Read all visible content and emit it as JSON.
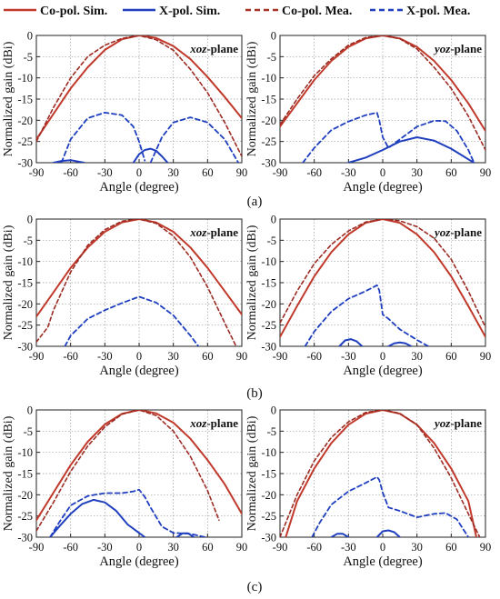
{
  "legend": [
    {
      "label": "Co-pol. Sim.",
      "color": "#c0392b",
      "style": "solid"
    },
    {
      "label": "X-pol. Sim.",
      "color": "#1f3fbf",
      "style": "solid"
    },
    {
      "label": "Co-pol. Mea.",
      "color": "#a93226",
      "style": "dashed"
    },
    {
      "label": "X-pol. Mea.",
      "color": "#1f3fbf",
      "style": "dashed"
    }
  ],
  "row_labels": [
    "(a)",
    "(b)",
    "(c)"
  ],
  "chart_data": [
    {
      "type": "line",
      "row": 0,
      "col": 0,
      "plane_italic": "xoz",
      "plane_suffix": "-plane",
      "xlabel": "Angle (degree)",
      "ylabel": "Normalized gain (dBi)",
      "xlim": [
        -90,
        90
      ],
      "ylim": [
        -30,
        0
      ],
      "xticks": [
        -90,
        -60,
        -30,
        0,
        30,
        60,
        90
      ],
      "yticks": [
        0,
        -5,
        -10,
        -15,
        -20,
        -25,
        -30
      ],
      "grid": true,
      "series": [
        {
          "name": "Co-pol. Sim.",
          "x": [
            -90,
            -75,
            -60,
            -45,
            -30,
            -15,
            0,
            15,
            30,
            45,
            60,
            75,
            90
          ],
          "y": [
            -24.5,
            -18.5,
            -12.5,
            -7.5,
            -3.4,
            -0.9,
            0,
            -0.6,
            -2.5,
            -5.6,
            -9.8,
            -14.5,
            -19.5
          ]
        },
        {
          "name": "X-pol. Sim.",
          "x": [
            -75,
            -68,
            -60,
            -54,
            -48
          ],
          "y": [
            -30,
            -29.6,
            -29.4,
            -29.7,
            -30
          ]
        },
        {
          "name": "X-pol. Sim.",
          "x": [
            -5,
            0,
            5,
            10,
            15,
            20,
            25
          ],
          "y": [
            -30,
            -28,
            -27,
            -26.7,
            -27.2,
            -28.5,
            -30
          ]
        },
        {
          "name": "Co-pol. Mea.",
          "x": [
            -90,
            -75,
            -60,
            -45,
            -30,
            -15,
            0,
            15,
            30,
            45,
            60,
            75,
            90
          ],
          "y": [
            -25,
            -17,
            -10,
            -5,
            -2.3,
            -0.7,
            0,
            -1,
            -3.5,
            -8,
            -13.5,
            -20.5,
            -28.5
          ]
        },
        {
          "name": "X-pol. Mea.",
          "x": [
            -68,
            -60,
            -45,
            -30,
            -15,
            -5,
            0,
            5
          ],
          "y": [
            -30,
            -24.5,
            -19.5,
            -18.2,
            -18.8,
            -21.5,
            -25,
            -29.5
          ]
        },
        {
          "name": "X-pol. Mea.",
          "x": [
            10,
            20,
            30,
            45,
            60,
            75,
            87
          ],
          "y": [
            -30,
            -24,
            -20.5,
            -19.3,
            -20.5,
            -24.5,
            -30
          ]
        }
      ]
    },
    {
      "type": "line",
      "row": 0,
      "col": 1,
      "plane_italic": "yoz",
      "plane_suffix": "-plane",
      "xlabel": "Angle (degree)",
      "ylabel": "Normalized gain (dBi)",
      "xlim": [
        -90,
        90
      ],
      "ylim": [
        -30,
        0
      ],
      "xticks": [
        -90,
        -60,
        -30,
        0,
        30,
        60,
        90
      ],
      "yticks": [
        0,
        -5,
        -10,
        -15,
        -20,
        -25,
        -30
      ],
      "grid": true,
      "series": [
        {
          "name": "Co-pol. Sim.",
          "x": [
            -90,
            -75,
            -60,
            -45,
            -30,
            -15,
            0,
            15,
            30,
            45,
            60,
            75,
            90
          ],
          "y": [
            -21.5,
            -16,
            -10.5,
            -6,
            -2.7,
            -0.7,
            0,
            -0.7,
            -2.7,
            -6,
            -10.5,
            -16,
            -22.5
          ]
        },
        {
          "name": "X-pol. Sim.",
          "x": [
            -30,
            -15,
            0,
            15,
            30,
            45,
            60,
            75,
            80
          ],
          "y": [
            -30,
            -28.8,
            -27,
            -25,
            -24,
            -24.8,
            -26.7,
            -29.2,
            -30
          ]
        },
        {
          "name": "Co-pol. Mea.",
          "x": [
            -90,
            -75,
            -60,
            -45,
            -30,
            -15,
            0,
            15,
            30,
            45,
            60,
            75,
            90
          ],
          "y": [
            -21,
            -15,
            -9.5,
            -5.5,
            -2.3,
            -0.5,
            0,
            -0.8,
            -3.2,
            -7.5,
            -12.5,
            -19,
            -27
          ]
        },
        {
          "name": "X-pol. Mea.",
          "x": [
            -70,
            -60,
            -45,
            -30,
            -15,
            -5,
            -3,
            0,
            5,
            15,
            30,
            45,
            55,
            65,
            75,
            80
          ],
          "y": [
            -30,
            -26.5,
            -22.3,
            -20.3,
            -18.8,
            -18.2,
            -20,
            -24,
            -26.5,
            -24.5,
            -21.5,
            -20.1,
            -20.2,
            -22.5,
            -27,
            -30
          ]
        }
      ]
    },
    {
      "type": "line",
      "row": 1,
      "col": 0,
      "plane_italic": "xoz",
      "plane_suffix": "-plane",
      "xlabel": "Angle (degree)",
      "ylabel": "Normalized gain (dBi)",
      "xlim": [
        -90,
        90
      ],
      "ylim": [
        -30,
        0
      ],
      "xticks": [
        -90,
        -60,
        -30,
        0,
        30,
        60,
        90
      ],
      "yticks": [
        0,
        -5,
        -10,
        -15,
        -20,
        -25,
        -30
      ],
      "grid": true,
      "series": [
        {
          "name": "Co-pol. Sim.",
          "x": [
            -90,
            -75,
            -60,
            -45,
            -30,
            -15,
            0,
            15,
            30,
            45,
            60,
            75,
            90
          ],
          "y": [
            -23,
            -17.3,
            -11.5,
            -6.7,
            -3,
            -0.8,
            0,
            -0.8,
            -3,
            -6.7,
            -11.5,
            -17,
            -22.5
          ]
        },
        {
          "name": "Co-pol. Mea.",
          "x": [
            -90,
            -80,
            -75,
            -60,
            -45,
            -30,
            -15,
            0,
            15,
            30,
            45,
            60,
            75,
            85
          ],
          "y": [
            -29,
            -25.5,
            -21.5,
            -12.5,
            -6.2,
            -2.5,
            -0.5,
            0,
            -1,
            -4,
            -9,
            -16,
            -24.5,
            -30
          ]
        },
        {
          "name": "X-pol. Mea.",
          "x": [
            -65,
            -60,
            -45,
            -30,
            -15,
            0,
            15,
            30,
            45,
            52
          ],
          "y": [
            -30,
            -27.5,
            -23.5,
            -21.5,
            -19.8,
            -18.3,
            -19.7,
            -22.7,
            -27.5,
            -30
          ]
        }
      ]
    },
    {
      "type": "line",
      "row": 1,
      "col": 1,
      "plane_italic": "yoz",
      "plane_suffix": "-plane",
      "xlabel": "Angle (degree)",
      "ylabel": "Normalized gain (dBi)",
      "xlim": [
        -90,
        90
      ],
      "ylim": [
        -30,
        0
      ],
      "xticks": [
        -90,
        -60,
        -30,
        0,
        30,
        60,
        90
      ],
      "yticks": [
        0,
        -5,
        -10,
        -15,
        -20,
        -25,
        -30
      ],
      "grid": true,
      "series": [
        {
          "name": "Co-pol. Sim.",
          "x": [
            -90,
            -75,
            -60,
            -45,
            -30,
            -15,
            0,
            15,
            30,
            45,
            60,
            75,
            90
          ],
          "y": [
            -27.8,
            -20.5,
            -13.5,
            -7.8,
            -3.6,
            -0.9,
            0,
            -0.9,
            -3.6,
            -7.8,
            -13.5,
            -20.5,
            -27.8
          ]
        },
        {
          "name": "X-pol. Sim.",
          "x": [
            -38,
            -33,
            -28,
            -23,
            -18
          ],
          "y": [
            -30,
            -28.6,
            -28.3,
            -28.8,
            -30
          ]
        },
        {
          "name": "X-pol. Sim.",
          "x": [
            5,
            10,
            15,
            20,
            25
          ],
          "y": [
            -30,
            -29.3,
            -29.1,
            -29.3,
            -30
          ]
        },
        {
          "name": "Co-pol. Mea.",
          "x": [
            -90,
            -75,
            -60,
            -45,
            -30,
            -15,
            0,
            15,
            30,
            45,
            60,
            75,
            90
          ],
          "y": [
            -24.5,
            -17,
            -10.5,
            -6,
            -2.8,
            -0.7,
            0,
            -0.4,
            -1.8,
            -4.5,
            -9.5,
            -17,
            -25.5
          ]
        },
        {
          "name": "X-pol. Mea.",
          "x": [
            -68,
            -60,
            -45,
            -30,
            -15,
            -5,
            -3,
            0,
            5,
            15,
            30,
            40
          ],
          "y": [
            -30,
            -26.5,
            -21.8,
            -18.8,
            -17,
            -15.6,
            -16.8,
            -22.5,
            -23.5,
            -26,
            -28.5,
            -30
          ]
        }
      ]
    },
    {
      "type": "line",
      "row": 2,
      "col": 0,
      "plane_italic": "xoz",
      "plane_suffix": "-plane",
      "xlabel": "Angle (degree)",
      "ylabel": "Normalized gain (dBi)",
      "xlim": [
        -90,
        90
      ],
      "ylim": [
        -30,
        0
      ],
      "xticks": [
        -90,
        -60,
        -30,
        0,
        30,
        60,
        90
      ],
      "yticks": [
        0,
        -5,
        -10,
        -15,
        -20,
        -25,
        -30
      ],
      "grid": true,
      "series": [
        {
          "name": "Co-pol. Sim.",
          "x": [
            -90,
            -75,
            -60,
            -45,
            -30,
            -15,
            0,
            15,
            30,
            45,
            60,
            75,
            90
          ],
          "y": [
            -26,
            -19.5,
            -13,
            -7.5,
            -3.4,
            -0.9,
            0,
            -0.8,
            -3,
            -6.8,
            -11.8,
            -17.5,
            -24.5
          ]
        },
        {
          "name": "X-pol. Sim.",
          "x": [
            -78,
            -70,
            -60,
            -50,
            -40,
            -30,
            -20,
            -10,
            0,
            5
          ],
          "y": [
            -30,
            -27.5,
            -24.5,
            -22.2,
            -21.2,
            -21.8,
            -23.8,
            -27,
            -29,
            -30
          ]
        },
        {
          "name": "X-pol. Sim.",
          "x": [
            33,
            38,
            43,
            48
          ],
          "y": [
            -30,
            -29.1,
            -29.1,
            -30
          ]
        },
        {
          "name": "Co-pol. Mea.",
          "x": [
            -90,
            -75,
            -60,
            -45,
            -30,
            -15,
            0,
            15,
            30,
            45,
            60,
            70
          ],
          "y": [
            -28.5,
            -21.8,
            -14.5,
            -8.5,
            -4,
            -1,
            0,
            -1.3,
            -5,
            -11,
            -19,
            -26
          ]
        },
        {
          "name": "X-pol. Mea.",
          "x": [
            -78,
            -70,
            -60,
            -45,
            -30,
            -15,
            -5,
            0,
            5,
            10,
            20,
            30,
            45,
            58
          ],
          "y": [
            -30,
            -26.5,
            -22.5,
            -20.3,
            -19.6,
            -19.6,
            -19.2,
            -18.8,
            -20.5,
            -23,
            -27.5,
            -29,
            -29.2,
            -30
          ]
        }
      ]
    },
    {
      "type": "line",
      "row": 2,
      "col": 1,
      "plane_italic": "yoz",
      "plane_suffix": "-plane",
      "xlabel": "Angle (degree)",
      "ylabel": "Normalized gain (dBi)",
      "xlim": [
        -90,
        90
      ],
      "ylim": [
        -30,
        0
      ],
      "xticks": [
        -90,
        -60,
        -30,
        0,
        30,
        60,
        90
      ],
      "yticks": [
        0,
        -5,
        -10,
        -15,
        -20,
        -25,
        -30
      ],
      "grid": true,
      "series": [
        {
          "name": "Co-pol. Sim.",
          "x": [
            -85,
            -75,
            -60,
            -45,
            -30,
            -15,
            0,
            15,
            30,
            45,
            60,
            75,
            82
          ],
          "y": [
            -30,
            -21.5,
            -13.8,
            -7.8,
            -3.5,
            -0.9,
            0,
            -0.9,
            -3.5,
            -7.8,
            -13.8,
            -21.5,
            -30
          ]
        },
        {
          "name": "X-pol. Sim.",
          "x": [
            -45,
            -40,
            -35,
            -30
          ],
          "y": [
            -30,
            -29.2,
            -29.2,
            -30
          ]
        },
        {
          "name": "X-pol. Sim.",
          "x": [
            -5,
            0,
            5,
            10,
            15
          ],
          "y": [
            -30,
            -28.6,
            -28.4,
            -28.8,
            -30
          ]
        },
        {
          "name": "Co-pol. Mea.",
          "x": [
            -90,
            -75,
            -60,
            -45,
            -30,
            -15,
            0,
            15,
            30,
            45,
            60,
            75,
            85
          ],
          "y": [
            -30,
            -20,
            -12,
            -6.5,
            -2.8,
            -0.6,
            0,
            -0.8,
            -3.5,
            -9,
            -16,
            -24.5,
            -30
          ]
        },
        {
          "name": "X-pol. Mea.",
          "x": [
            -62,
            -55,
            -45,
            -30,
            -15,
            -5,
            -3,
            0,
            5,
            15,
            30,
            45,
            55,
            65,
            75
          ],
          "y": [
            -30,
            -26.5,
            -22.3,
            -19.2,
            -17.2,
            -15.8,
            -16.5,
            -19.5,
            -23,
            -23.8,
            -25.3,
            -24.5,
            -24.3,
            -25.8,
            -30
          ]
        }
      ]
    }
  ]
}
